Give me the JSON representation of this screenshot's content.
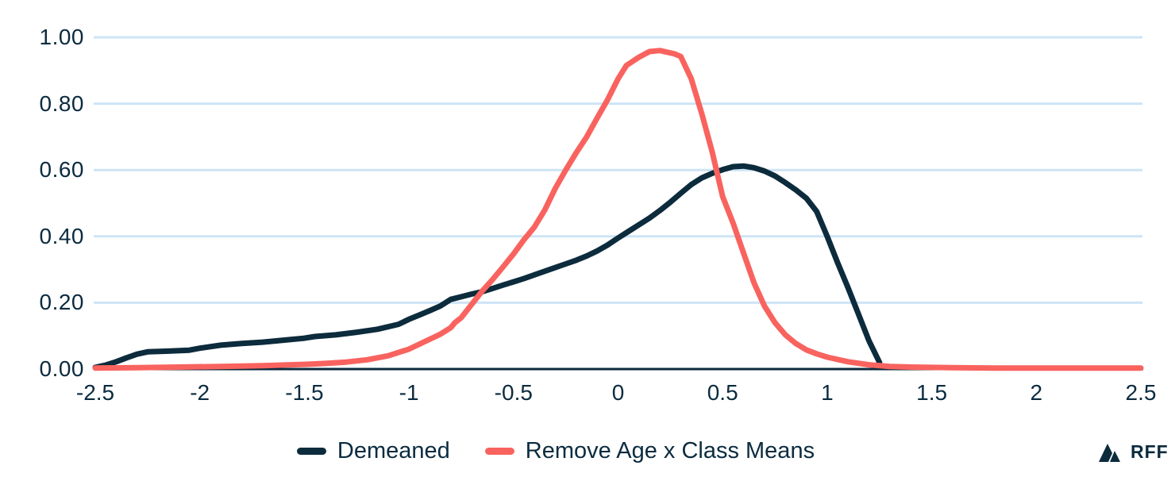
{
  "colors": {
    "demeaned": "#0C2B3C",
    "remove_age_x_class_means": "#F9635F",
    "gridline": "#CDE4F6",
    "axis": "#0C2B3C",
    "text": "#0B2B3F",
    "background": "#FFFFFF"
  },
  "branding": {
    "logo_text": "RFF"
  },
  "chart_data": {
    "type": "line",
    "title": "",
    "xlabel": "",
    "ylabel": "",
    "xlim": [
      -2.5,
      2.5
    ],
    "ylim": [
      0,
      1.0
    ],
    "grid": "horizontal",
    "legend_position": "bottom-center",
    "xticks": [
      -2.5,
      -2,
      -1.5,
      -1,
      -0.5,
      0,
      0.5,
      1,
      1.5,
      2,
      2.5
    ],
    "xtick_labels": [
      "-2.5",
      "-2",
      "-1.5",
      "-1",
      "-0.5",
      "0",
      "0.5",
      "1",
      "1.5",
      "2",
      "2.5"
    ],
    "yticks": [
      0,
      0.2,
      0.4,
      0.6,
      0.8,
      1.0
    ],
    "ytick_labels": [
      "0.00",
      "0.20",
      "0.40",
      "0.60",
      "0.80",
      "1.00"
    ],
    "series": [
      {
        "name": "Demeaned",
        "color": "#0C2B3C",
        "points": [
          [
            -2.5,
            0.005
          ],
          [
            -2.45,
            0.012
          ],
          [
            -2.4,
            0.022
          ],
          [
            -2.35,
            0.034
          ],
          [
            -2.3,
            0.045
          ],
          [
            -2.25,
            0.052
          ],
          [
            -2.15,
            0.054
          ],
          [
            -2.05,
            0.057
          ],
          [
            -2.0,
            0.063
          ],
          [
            -1.9,
            0.072
          ],
          [
            -1.8,
            0.077
          ],
          [
            -1.7,
            0.081
          ],
          [
            -1.6,
            0.087
          ],
          [
            -1.5,
            0.093
          ],
          [
            -1.45,
            0.098
          ],
          [
            -1.35,
            0.103
          ],
          [
            -1.25,
            0.111
          ],
          [
            -1.15,
            0.12
          ],
          [
            -1.05,
            0.135
          ],
          [
            -1.0,
            0.15
          ],
          [
            -0.95,
            0.163
          ],
          [
            -0.9,
            0.176
          ],
          [
            -0.85,
            0.19
          ],
          [
            -0.8,
            0.21
          ],
          [
            -0.75,
            0.218
          ],
          [
            -0.7,
            0.226
          ],
          [
            -0.65,
            0.233
          ],
          [
            -0.6,
            0.243
          ],
          [
            -0.55,
            0.253
          ],
          [
            -0.5,
            0.263
          ],
          [
            -0.45,
            0.273
          ],
          [
            -0.4,
            0.284
          ],
          [
            -0.35,
            0.295
          ],
          [
            -0.3,
            0.306
          ],
          [
            -0.25,
            0.317
          ],
          [
            -0.2,
            0.328
          ],
          [
            -0.15,
            0.341
          ],
          [
            -0.1,
            0.356
          ],
          [
            -0.05,
            0.374
          ],
          [
            0,
            0.395
          ],
          [
            0.05,
            0.415
          ],
          [
            0.1,
            0.435
          ],
          [
            0.15,
            0.455
          ],
          [
            0.2,
            0.478
          ],
          [
            0.25,
            0.503
          ],
          [
            0.3,
            0.53
          ],
          [
            0.35,
            0.556
          ],
          [
            0.4,
            0.576
          ],
          [
            0.45,
            0.59
          ],
          [
            0.5,
            0.601
          ],
          [
            0.55,
            0.61
          ],
          [
            0.6,
            0.612
          ],
          [
            0.65,
            0.607
          ],
          [
            0.7,
            0.597
          ],
          [
            0.75,
            0.582
          ],
          [
            0.8,
            0.562
          ],
          [
            0.85,
            0.54
          ],
          [
            0.9,
            0.515
          ],
          [
            0.95,
            0.475
          ],
          [
            1.0,
            0.4
          ],
          [
            1.05,
            0.32
          ],
          [
            1.1,
            0.245
          ],
          [
            1.15,
            0.165
          ],
          [
            1.2,
            0.085
          ],
          [
            1.25,
            0.02
          ]
        ]
      },
      {
        "name": "Remove Age x Class Means",
        "color": "#F9635F",
        "points": [
          [
            -2.5,
            0.003
          ],
          [
            -2.3,
            0.004
          ],
          [
            -2.1,
            0.006
          ],
          [
            -1.9,
            0.008
          ],
          [
            -1.7,
            0.01
          ],
          [
            -1.5,
            0.014
          ],
          [
            -1.4,
            0.017
          ],
          [
            -1.3,
            0.021
          ],
          [
            -1.2,
            0.028
          ],
          [
            -1.1,
            0.04
          ],
          [
            -1.0,
            0.06
          ],
          [
            -0.9,
            0.09
          ],
          [
            -0.85,
            0.105
          ],
          [
            -0.8,
            0.125
          ],
          [
            -0.78,
            0.14
          ],
          [
            -0.75,
            0.155
          ],
          [
            -0.7,
            0.195
          ],
          [
            -0.65,
            0.235
          ],
          [
            -0.6,
            0.27
          ],
          [
            -0.55,
            0.308
          ],
          [
            -0.5,
            0.347
          ],
          [
            -0.45,
            0.39
          ],
          [
            -0.4,
            0.428
          ],
          [
            -0.35,
            0.48
          ],
          [
            -0.3,
            0.545
          ],
          [
            -0.25,
            0.6
          ],
          [
            -0.2,
            0.652
          ],
          [
            -0.15,
            0.7
          ],
          [
            -0.1,
            0.757
          ],
          [
            -0.05,
            0.812
          ],
          [
            0,
            0.875
          ],
          [
            0.04,
            0.915
          ],
          [
            0.1,
            0.94
          ],
          [
            0.15,
            0.957
          ],
          [
            0.2,
            0.96
          ],
          [
            0.27,
            0.95
          ],
          [
            0.3,
            0.942
          ],
          [
            0.35,
            0.875
          ],
          [
            0.4,
            0.77
          ],
          [
            0.45,
            0.655
          ],
          [
            0.5,
            0.52
          ],
          [
            0.55,
            0.44
          ],
          [
            0.6,
            0.35
          ],
          [
            0.65,
            0.26
          ],
          [
            0.7,
            0.19
          ],
          [
            0.75,
            0.14
          ],
          [
            0.8,
            0.103
          ],
          [
            0.85,
            0.077
          ],
          [
            0.9,
            0.058
          ],
          [
            0.95,
            0.046
          ],
          [
            1.0,
            0.036
          ],
          [
            1.1,
            0.022
          ],
          [
            1.2,
            0.013
          ],
          [
            1.3,
            0.008
          ],
          [
            1.4,
            0.006
          ],
          [
            1.6,
            0.004
          ],
          [
            1.8,
            0.003
          ],
          [
            2.0,
            0.003
          ],
          [
            2.25,
            0.003
          ],
          [
            2.5,
            0.003
          ]
        ]
      }
    ]
  }
}
